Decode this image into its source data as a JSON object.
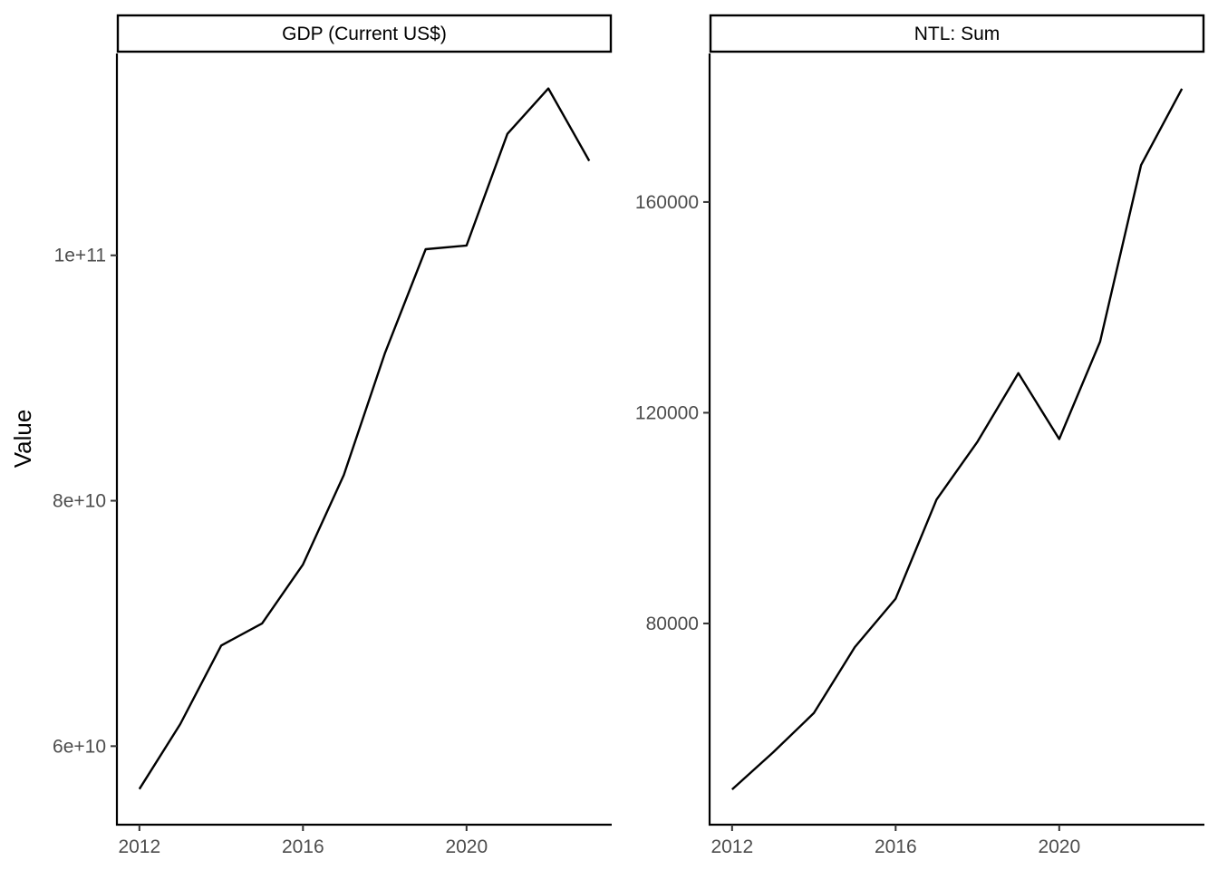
{
  "chart_data": {
    "type": "line",
    "ylabel": "Value",
    "xlabel": "",
    "grid": false,
    "line_color": "#000000",
    "panels": [
      {
        "strip_label": "GDP (Current US$)",
        "x": [
          2012,
          2013,
          2014,
          2015,
          2016,
          2017,
          2018,
          2019,
          2020,
          2021,
          2022,
          2023
        ],
        "values": [
          56500000000,
          61800000000,
          68200000000,
          70000000000,
          74800000000,
          82100000000,
          92000000000,
          100500000000,
          100800000000,
          109900000000,
          113600000000,
          107700000000
        ],
        "xlim": [
          2011.45,
          2023.55
        ],
        "ylim": [
          53600000000,
          116450000000
        ],
        "x_ticks": [
          2012,
          2016,
          2020
        ],
        "x_tick_labels": [
          "2012",
          "2016",
          "2020"
        ],
        "y_ticks": [
          60000000000,
          80000000000,
          100000000000
        ],
        "y_tick_labels": [
          "6e+10",
          "8e+10",
          "1e+11"
        ]
      },
      {
        "strip_label": "NTL: Sum",
        "x": [
          2012,
          2013,
          2014,
          2015,
          2016,
          2017,
          2018,
          2019,
          2020,
          2021,
          2022,
          2023
        ],
        "values": [
          48500,
          55500,
          63000,
          75500,
          84700,
          103500,
          114500,
          127500,
          115000,
          133500,
          167000,
          181500
        ],
        "xlim": [
          2011.45,
          2023.55
        ],
        "ylim": [
          41800,
          188200
        ],
        "x_ticks": [
          2012,
          2016,
          2020
        ],
        "x_tick_labels": [
          "2012",
          "2016",
          "2020"
        ],
        "y_ticks": [
          80000,
          120000,
          160000
        ],
        "y_tick_labels": [
          "80000",
          "120000",
          "160000"
        ]
      }
    ]
  }
}
